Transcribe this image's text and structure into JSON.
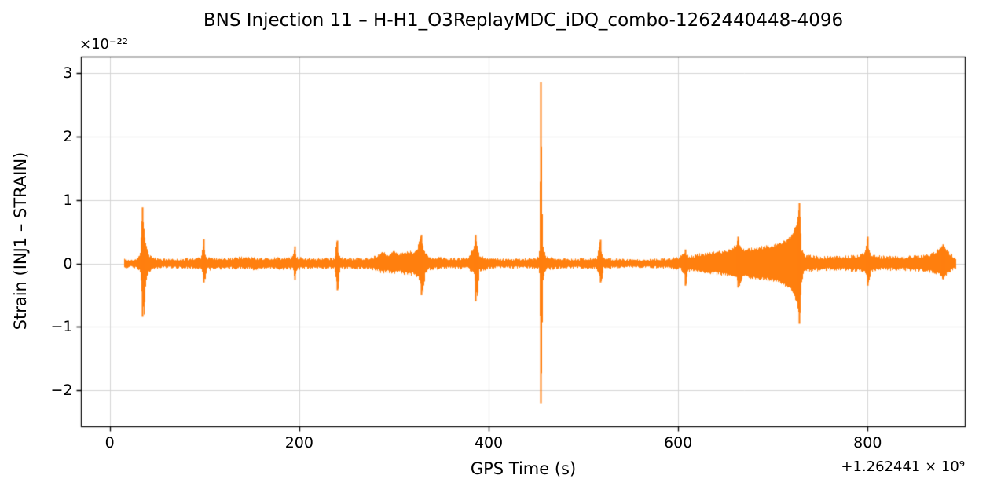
{
  "chart_data": {
    "type": "line",
    "title": "BNS Injection 11 – H-H1_O3ReplayMDC_iDQ_combo-1262440448-4096",
    "xlabel": "GPS Time (s)",
    "ylabel": "Strain (INJ1 – STRAIN)",
    "y_scale_label": "×10⁻²²",
    "x_offset_label": "+1.262441 × 10⁹",
    "line_color": "#ff7f0e",
    "grid": true,
    "grid_color": "#d4d4d4",
    "frame_color": "#000000",
    "xlim": [
      -30,
      903
    ],
    "ylim": [
      -2.57,
      3.25
    ],
    "x_ticks": {
      "values": [
        0,
        200,
        400,
        600,
        800
      ],
      "labels": [
        "0",
        "200",
        "400",
        "600",
        "800"
      ]
    },
    "y_ticks": {
      "values": [
        -2,
        -1,
        0,
        1,
        2,
        3
      ],
      "labels": [
        "−2",
        "−1",
        "0",
        "1",
        "2",
        "3"
      ]
    },
    "spikes": [
      [
        34.5,
        0.88,
        -0.84
      ],
      [
        99,
        0.38,
        -0.3
      ],
      [
        195,
        0.27,
        -0.26
      ],
      [
        240,
        0.36,
        -0.42
      ],
      [
        329,
        0.45,
        -0.5
      ],
      [
        386,
        0.45,
        -0.6
      ],
      [
        455,
        2.85,
        -2.2
      ],
      [
        518,
        0.37,
        -0.3
      ],
      [
        607,
        0.22,
        -0.35
      ],
      [
        663,
        0.42,
        -0.38
      ],
      [
        728,
        0.95,
        -0.95
      ],
      [
        800,
        0.42,
        -0.35
      ],
      [
        879,
        0.3,
        -0.25
      ]
    ],
    "envelope": {
      "points": [
        [
          15,
          0.08,
          -0.08
        ],
        [
          22,
          0.07,
          -0.07
        ],
        [
          28,
          0.09,
          -0.08
        ],
        [
          32,
          0.2,
          -0.15
        ],
        [
          34,
          0.88,
          -0.6
        ],
        [
          36,
          0.55,
          -0.84
        ],
        [
          38,
          0.3,
          -0.3
        ],
        [
          41,
          0.16,
          -0.16
        ],
        [
          46,
          0.1,
          -0.1
        ],
        [
          55,
          0.08,
          -0.08
        ],
        [
          70,
          0.08,
          -0.08
        ],
        [
          85,
          0.09,
          -0.09
        ],
        [
          96,
          0.1,
          -0.1
        ],
        [
          99,
          0.38,
          -0.22
        ],
        [
          100,
          0.2,
          -0.3
        ],
        [
          102,
          0.12,
          -0.12
        ],
        [
          112,
          0.1,
          -0.1
        ],
        [
          125,
          0.1,
          -0.09
        ],
        [
          140,
          0.11,
          -0.1
        ],
        [
          155,
          0.1,
          -0.11
        ],
        [
          170,
          0.1,
          -0.1
        ],
        [
          185,
          0.1,
          -0.1
        ],
        [
          193,
          0.13,
          -0.11
        ],
        [
          195,
          0.27,
          -0.26
        ],
        [
          197,
          0.11,
          -0.11
        ],
        [
          210,
          0.09,
          -0.09
        ],
        [
          225,
          0.09,
          -0.09
        ],
        [
          237,
          0.1,
          -0.1
        ],
        [
          239,
          0.36,
          -0.28
        ],
        [
          241,
          0.2,
          -0.42
        ],
        [
          243,
          0.1,
          -0.1
        ],
        [
          255,
          0.09,
          -0.09
        ],
        [
          270,
          0.1,
          -0.1
        ],
        [
          282,
          0.14,
          -0.13
        ],
        [
          288,
          0.19,
          -0.17
        ],
        [
          294,
          0.16,
          -0.15
        ],
        [
          300,
          0.21,
          -0.18
        ],
        [
          307,
          0.17,
          -0.16
        ],
        [
          314,
          0.21,
          -0.2
        ],
        [
          320,
          0.19,
          -0.19
        ],
        [
          325,
          0.28,
          -0.24
        ],
        [
          328,
          0.45,
          -0.35
        ],
        [
          330,
          0.3,
          -0.5
        ],
        [
          333,
          0.18,
          -0.18
        ],
        [
          337,
          0.12,
          -0.12
        ],
        [
          350,
          0.1,
          -0.09
        ],
        [
          365,
          0.09,
          -0.09
        ],
        [
          378,
          0.1,
          -0.1
        ],
        [
          384,
          0.28,
          -0.18
        ],
        [
          386,
          0.45,
          -0.38
        ],
        [
          388,
          0.25,
          -0.6
        ],
        [
          390,
          0.14,
          -0.14
        ],
        [
          400,
          0.09,
          -0.09
        ],
        [
          415,
          0.08,
          -0.08
        ],
        [
          432,
          0.08,
          -0.08
        ],
        [
          448,
          0.09,
          -0.09
        ],
        [
          453,
          0.12,
          -0.12
        ],
        [
          454,
          1.4,
          -0.9
        ],
        [
          455,
          2.85,
          -2.2
        ],
        [
          456,
          1.1,
          -1.4
        ],
        [
          457,
          0.3,
          -0.3
        ],
        [
          460,
          0.12,
          -0.12
        ],
        [
          472,
          0.09,
          -0.09
        ],
        [
          488,
          0.08,
          -0.08
        ],
        [
          503,
          0.09,
          -0.09
        ],
        [
          514,
          0.1,
          -0.1
        ],
        [
          517,
          0.37,
          -0.24
        ],
        [
          519,
          0.18,
          -0.3
        ],
        [
          521,
          0.1,
          -0.1
        ],
        [
          533,
          0.08,
          -0.08
        ],
        [
          548,
          0.07,
          -0.07
        ],
        [
          563,
          0.07,
          -0.07
        ],
        [
          578,
          0.08,
          -0.08
        ],
        [
          592,
          0.09,
          -0.09
        ],
        [
          602,
          0.12,
          -0.11
        ],
        [
          606,
          0.22,
          -0.18
        ],
        [
          608,
          0.15,
          -0.35
        ],
        [
          610,
          0.14,
          -0.14
        ],
        [
          618,
          0.15,
          -0.15
        ],
        [
          628,
          0.18,
          -0.17
        ],
        [
          638,
          0.2,
          -0.18
        ],
        [
          648,
          0.21,
          -0.2
        ],
        [
          656,
          0.24,
          -0.22
        ],
        [
          661,
          0.32,
          -0.26
        ],
        [
          663,
          0.42,
          -0.3
        ],
        [
          665,
          0.28,
          -0.38
        ],
        [
          668,
          0.24,
          -0.23
        ],
        [
          676,
          0.25,
          -0.25
        ],
        [
          685,
          0.27,
          -0.26
        ],
        [
          694,
          0.29,
          -0.28
        ],
        [
          702,
          0.31,
          -0.3
        ],
        [
          710,
          0.35,
          -0.34
        ],
        [
          716,
          0.4,
          -0.39
        ],
        [
          721,
          0.5,
          -0.48
        ],
        [
          725,
          0.68,
          -0.65
        ],
        [
          727,
          0.88,
          -0.8
        ],
        [
          728,
          0.95,
          -0.95
        ],
        [
          729,
          0.55,
          -0.6
        ],
        [
          730,
          0.25,
          -0.3
        ],
        [
          733,
          0.15,
          -0.15
        ],
        [
          742,
          0.13,
          -0.13
        ],
        [
          755,
          0.12,
          -0.12
        ],
        [
          768,
          0.12,
          -0.12
        ],
        [
          780,
          0.13,
          -0.13
        ],
        [
          792,
          0.15,
          -0.14
        ],
        [
          797,
          0.2,
          -0.16
        ],
        [
          799,
          0.42,
          -0.25
        ],
        [
          801,
          0.22,
          -0.35
        ],
        [
          803,
          0.15,
          -0.15
        ],
        [
          812,
          0.13,
          -0.12
        ],
        [
          825,
          0.12,
          -0.12
        ],
        [
          838,
          0.12,
          -0.12
        ],
        [
          850,
          0.13,
          -0.13
        ],
        [
          860,
          0.15,
          -0.14
        ],
        [
          868,
          0.17,
          -0.16
        ],
        [
          875,
          0.25,
          -0.2
        ],
        [
          879,
          0.3,
          -0.25
        ],
        [
          883,
          0.24,
          -0.2
        ],
        [
          887,
          0.17,
          -0.14
        ],
        [
          891,
          0.12,
          -0.1
        ],
        [
          893,
          0.1,
          -0.09
        ]
      ]
    }
  }
}
